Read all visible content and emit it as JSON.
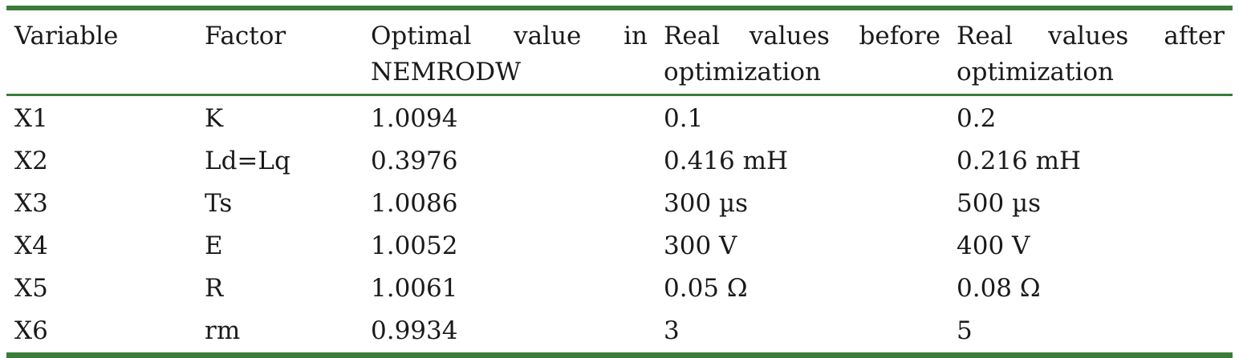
{
  "table": {
    "headers": [
      {
        "line1": "Variable",
        "line2": ""
      },
      {
        "line1": "Factor",
        "line2": ""
      },
      {
        "line1": "Optimal value in",
        "line2": "NEMRODW"
      },
      {
        "line1": "Real values before",
        "line2": "optimization"
      },
      {
        "line1": "Real values after",
        "line2": "optimization"
      }
    ],
    "rows": [
      [
        "X1",
        "K",
        "1.0094",
        "0.1",
        "0.2"
      ],
      [
        "X2",
        "Ld=Lq",
        "0.3976",
        "0.416 mH",
        "0.216 mH"
      ],
      [
        "X3",
        "Ts",
        "1.0086",
        "300 µs",
        "500 µs"
      ],
      [
        "X4",
        "E",
        "1.0052",
        "300 V",
        "400 V"
      ],
      [
        "X5",
        "R",
        "1.0061",
        "0.05 Ω",
        "0.08 Ω"
      ],
      [
        "X6",
        "rm",
        "0.9934",
        "3",
        "5"
      ]
    ]
  },
  "colors": {
    "rule": "#3a7d3a",
    "text": "#1a1a1a"
  }
}
